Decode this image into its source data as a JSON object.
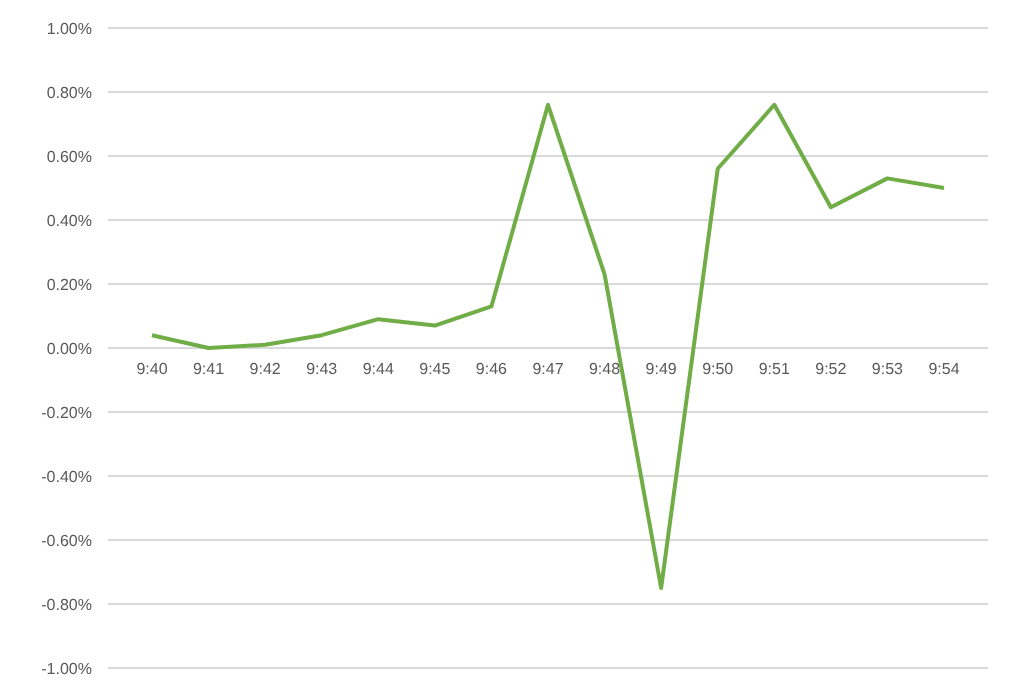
{
  "chart_data": {
    "type": "line",
    "categories": [
      "9:40",
      "9:41",
      "9:42",
      "9:43",
      "9:44",
      "9:45",
      "9:46",
      "9:47",
      "9:48",
      "9:49",
      "9:50",
      "9:51",
      "9:52",
      "9:53",
      "9:54"
    ],
    "series": [
      {
        "color": "#70ad47",
        "values": [
          0.04,
          0.0,
          0.01,
          0.04,
          0.09,
          0.07,
          0.13,
          0.76,
          0.23,
          -0.75,
          0.56,
          0.76,
          0.44,
          0.53,
          0.5
        ]
      }
    ],
    "ylim": [
      -1.0,
      1.0
    ],
    "yticks": [
      {
        "value": -1.0,
        "label": "-1.00%"
      },
      {
        "value": -0.8,
        "label": "-0.80%"
      },
      {
        "value": -0.6,
        "label": "-0.60%"
      },
      {
        "value": -0.4,
        "label": "-0.40%"
      },
      {
        "value": -0.2,
        "label": "-0.20%"
      },
      {
        "value": 0,
        "label": "0.00%"
      },
      {
        "value": 0.2,
        "label": "0.20%"
      },
      {
        "value": 0.4,
        "label": "0.40%"
      },
      {
        "value": 0.6,
        "label": "0.60%"
      },
      {
        "value": 0.8,
        "label": "0.80%"
      },
      {
        "value": 1.0,
        "label": "1.00%"
      }
    ],
    "grid": "y",
    "marker": "none",
    "line_style": "solid"
  }
}
